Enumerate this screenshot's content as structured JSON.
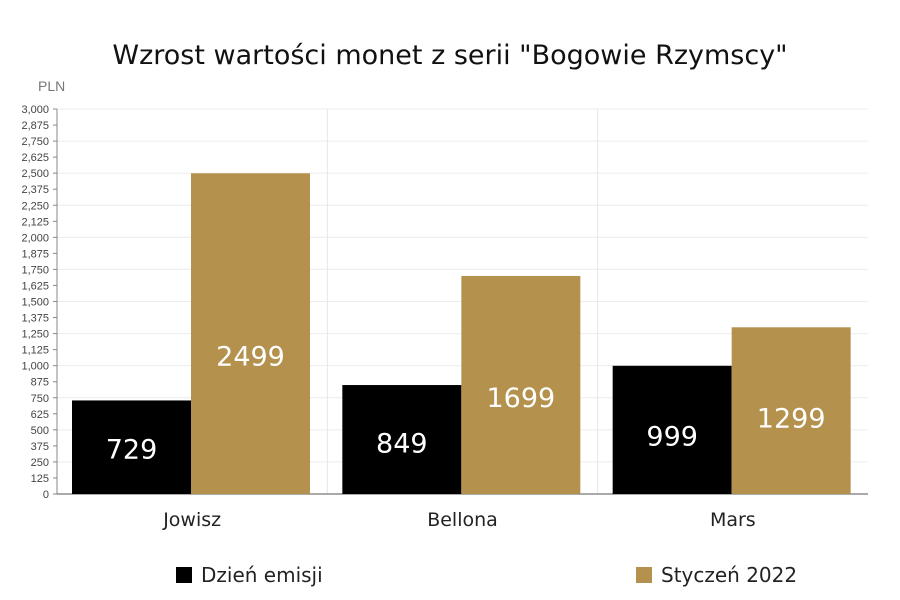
{
  "chart_data": {
    "type": "bar",
    "title": "Wzrost wartości monet z serii \"Bogowie Rzymscy\"",
    "ylabel": "PLN",
    "xlabel": "",
    "categories": [
      "Jowisz",
      "Bellona",
      "Mars"
    ],
    "series": [
      {
        "name": "Dzień emisji",
        "color": "#000000",
        "values": [
          729,
          849,
          999
        ]
      },
      {
        "name": "Styczeń 2022",
        "color": "#b4914c",
        "values": [
          2499,
          1699,
          1299
        ]
      }
    ],
    "ylim": [
      0,
      3000
    ],
    "yticks": [
      "0",
      "125",
      "250",
      "375",
      "500",
      "625",
      "750",
      "875",
      "1,000",
      "1,125",
      "1,250",
      "1,375",
      "1,500",
      "1,625",
      "1,750",
      "1,875",
      "2,000",
      "2,125",
      "2,250",
      "2,375",
      "2,500",
      "2,625",
      "2,750",
      "2,875",
      "3,000"
    ],
    "grid": true,
    "legend_position": "bottom",
    "data_labels": true
  }
}
